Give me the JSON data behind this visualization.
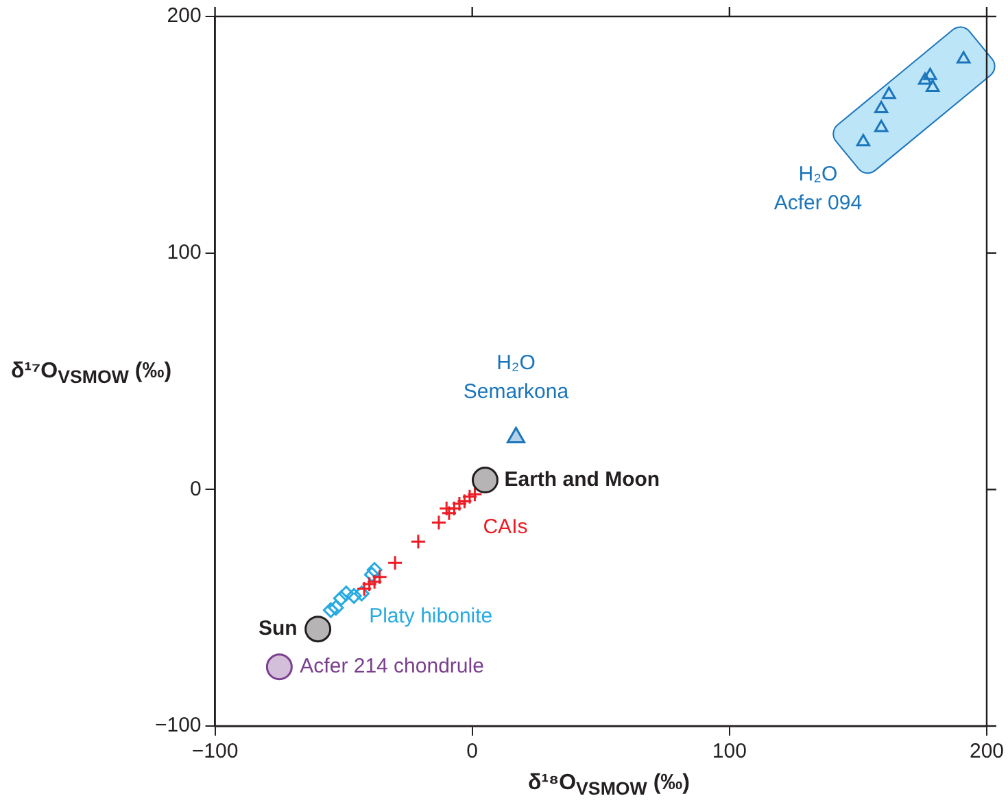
{
  "chart_data": {
    "type": "scatter",
    "xlabel": "δ¹⁸O$_{VSMOW}$ (‰)",
    "ylabel": "δ¹⁷O$_{VSMOW}$ (‰)",
    "xlim": [
      -100,
      200
    ],
    "ylim": [
      -100,
      200
    ],
    "xticks": [
      {
        "value": -100,
        "label": "−100"
      },
      0,
      100,
      200
    ],
    "yticks": [
      {
        "value": -100,
        "label": "−100"
      },
      0,
      100,
      200
    ],
    "grid": false,
    "series": [
      {
        "name": "H₂O\nAcfer 094",
        "color": "#1b75bb",
        "marker": "triangle",
        "x": [
          191,
          178,
          176,
          179,
          162,
          159,
          159,
          152
        ],
        "values": [
          182,
          175,
          173,
          170,
          167,
          161,
          153,
          147
        ]
      },
      {
        "name": "H₂O\nSemarkona",
        "color": "#1b75bb",
        "marker": "triangle",
        "x": [
          17
        ],
        "values": [
          22
        ]
      },
      {
        "name": "Earth and Moon",
        "color": "#231f20",
        "marker": "circle",
        "x": [
          5
        ],
        "values": [
          4
        ]
      },
      {
        "name": "CAIs",
        "color": "#ed1c24",
        "marker": "cross",
        "x": [
          1,
          -1,
          -3,
          -5,
          -7,
          -9,
          -10,
          -13,
          -21,
          -30,
          -36,
          -38,
          -40,
          -42
        ],
        "values": [
          -2,
          -3,
          -5,
          -6,
          -8,
          -10,
          -8,
          -14,
          -22,
          -31,
          -37,
          -39,
          -40,
          -42
        ]
      },
      {
        "name": "Platy hibonite",
        "color": "#27aae1",
        "marker": "diamond",
        "x": [
          -38,
          -39,
          -43,
          -46,
          -49,
          -51,
          -53,
          -55
        ],
        "values": [
          -34,
          -36,
          -44,
          -45,
          -44,
          -46,
          -50,
          -51
        ]
      },
      {
        "name": "Sun",
        "color": "#231f20",
        "marker": "circle",
        "x": [
          -60
        ],
        "values": [
          -59
        ]
      },
      {
        "name": "Acfer 214 chondrule",
        "color": "#7a3f8f",
        "marker": "circle",
        "x": [
          -75
        ],
        "values": [
          -75
        ]
      }
    ]
  }
}
